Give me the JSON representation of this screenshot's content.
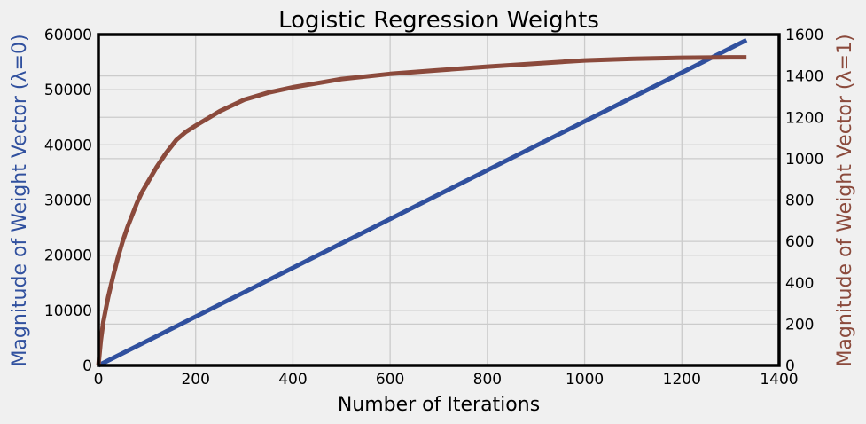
{
  "chart_data": {
    "type": "line",
    "title": "Logistic Regression Weights",
    "xlabel": "Number of Iterations",
    "ylabel_left": "Magnitude of Weight Vector (λ=0)",
    "ylabel_right": "Magnitude of Weight Vector (λ=1)",
    "xlim": [
      0,
      1400
    ],
    "ylim_left": [
      0,
      60000
    ],
    "ylim_right": [
      0,
      1600
    ],
    "xticks": [
      "0",
      "200",
      "400",
      "600",
      "800",
      "1000",
      "1200",
      "1400"
    ],
    "yticks_left": [
      "0",
      "10000",
      "20000",
      "30000",
      "40000",
      "50000",
      "60000"
    ],
    "yticks_right": [
      "0",
      "200",
      "400",
      "600",
      "800",
      "1000",
      "1200",
      "1400",
      "1600"
    ],
    "grid": true,
    "series": [
      {
        "name": "λ=0",
        "axis": "left",
        "color": "#30509e",
        "x": [
          0,
          1333
        ],
        "y": [
          0,
          59000
        ]
      },
      {
        "name": "λ=1",
        "axis": "right",
        "color": "#8b4a3c",
        "x": [
          0,
          5,
          10,
          20,
          30,
          40,
          50,
          60,
          70,
          80,
          90,
          100,
          120,
          140,
          160,
          180,
          200,
          250,
          300,
          350,
          400,
          450,
          500,
          600,
          700,
          800,
          900,
          1000,
          1100,
          1200,
          1300,
          1333
        ],
        "y": [
          0,
          120,
          210,
          330,
          430,
          520,
          600,
          670,
          730,
          790,
          840,
          880,
          960,
          1030,
          1090,
          1130,
          1160,
          1230,
          1285,
          1320,
          1345,
          1365,
          1385,
          1410,
          1428,
          1445,
          1460,
          1475,
          1483,
          1488,
          1490,
          1490
        ]
      }
    ]
  }
}
